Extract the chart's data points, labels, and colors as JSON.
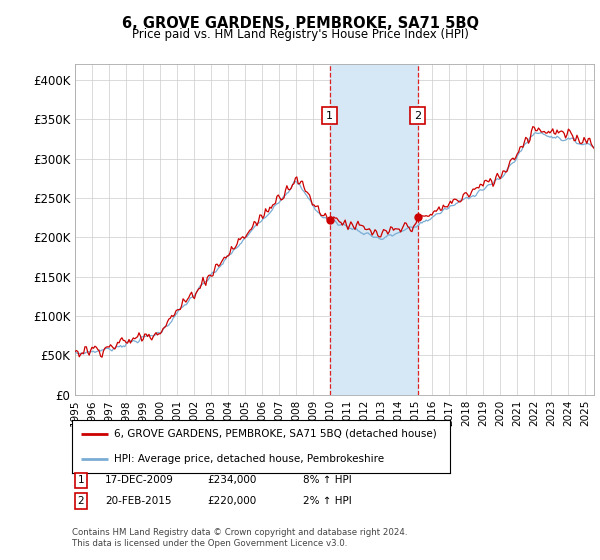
{
  "title": "6, GROVE GARDENS, PEMBROKE, SA71 5BQ",
  "subtitle": "Price paid vs. HM Land Registry's House Price Index (HPI)",
  "ylabel_ticks": [
    "£0",
    "£50K",
    "£100K",
    "£150K",
    "£200K",
    "£250K",
    "£300K",
    "£350K",
    "£400K"
  ],
  "ytick_values": [
    0,
    50000,
    100000,
    150000,
    200000,
    250000,
    300000,
    350000,
    400000
  ],
  "ylim": [
    0,
    420000
  ],
  "xlim_start": 1995.0,
  "xlim_end": 2025.5,
  "xtick_years": [
    1995,
    1996,
    1997,
    1998,
    1999,
    2000,
    2001,
    2002,
    2003,
    2004,
    2005,
    2006,
    2007,
    2008,
    2009,
    2010,
    2011,
    2012,
    2013,
    2014,
    2015,
    2016,
    2017,
    2018,
    2019,
    2020,
    2021,
    2022,
    2023,
    2024,
    2025
  ],
  "event1_x": 2009.96,
  "event2_x": 2015.13,
  "event1_price": 234000,
  "event2_price": 220000,
  "shade_color": "#d6e8f5",
  "dashed_color": "#dd2222",
  "legend_line1": "6, GROVE GARDENS, PEMBROKE, SA71 5BQ (detached house)",
  "legend_line2": "HPI: Average price, detached house, Pembrokeshire",
  "line1_color": "#cc0000",
  "line2_color": "#7aadd4",
  "annotation1_date": "17-DEC-2009",
  "annotation1_price": "£234,000",
  "annotation1_hpi": "8% ↑ HPI",
  "annotation2_date": "20-FEB-2015",
  "annotation2_price": "£220,000",
  "annotation2_hpi": "2% ↑ HPI",
  "footer": "Contains HM Land Registry data © Crown copyright and database right 2024.\nThis data is licensed under the Open Government Licence v3.0.",
  "background_color": "#ffffff",
  "grid_color": "#cccccc",
  "marker_color": "#cc0000"
}
